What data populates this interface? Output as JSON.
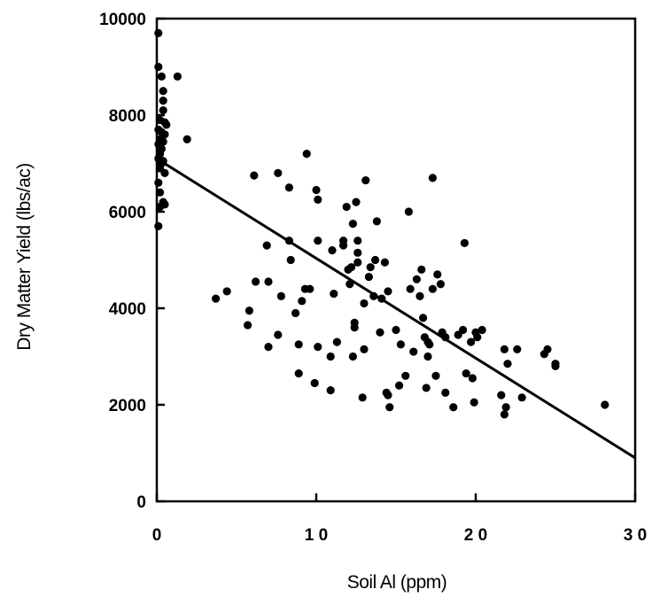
{
  "chart_data": {
    "type": "scatter",
    "title": "",
    "xlabel": "Soil Al (ppm)",
    "ylabel": "Dry Matter Yield (lbs/ac)",
    "xlim": [
      0,
      30
    ],
    "ylim": [
      0,
      10000
    ],
    "xticks": [
      0,
      10,
      20,
      30
    ],
    "xtick_labels": [
      "0",
      "1 0",
      "2 0",
      "3 0"
    ],
    "yticks": [
      0,
      2000,
      4000,
      6000,
      8000,
      10000
    ],
    "ytick_labels": [
      "0",
      "2000",
      "4000",
      "6000",
      "8000",
      "10000"
    ],
    "grid": false,
    "legend": "none",
    "colors": {
      "points": "#000000",
      "line": "#000000",
      "axes": "#000000"
    },
    "trendline": {
      "x": [
        0,
        30
      ],
      "y": [
        7100,
        900
      ]
    },
    "series": [
      {
        "points": [
          [
            0.1,
            9700
          ],
          [
            0.1,
            9000
          ],
          [
            0.3,
            8800
          ],
          [
            0.4,
            8500
          ],
          [
            0.4,
            8300
          ],
          [
            0.4,
            8100
          ],
          [
            0.2,
            7900
          ],
          [
            0.5,
            7850
          ],
          [
            0.6,
            7800
          ],
          [
            0.1,
            7700
          ],
          [
            0.3,
            7650
          ],
          [
            0.5,
            7600
          ],
          [
            0.2,
            7500
          ],
          [
            0.4,
            7450
          ],
          [
            0.1,
            7400
          ],
          [
            0.3,
            7300
          ],
          [
            0.2,
            7200
          ],
          [
            0.1,
            7100
          ],
          [
            0.4,
            7050
          ],
          [
            0.3,
            7000
          ],
          [
            0.2,
            6900
          ],
          [
            0.5,
            6800
          ],
          [
            0.1,
            6600
          ],
          [
            0.2,
            6400
          ],
          [
            0.4,
            6200
          ],
          [
            0.5,
            6150
          ],
          [
            0.2,
            6100
          ],
          [
            0.1,
            5700
          ],
          [
            1.3,
            8800
          ],
          [
            1.9,
            7500
          ],
          [
            3.7,
            4200
          ],
          [
            4.4,
            4350
          ],
          [
            5.7,
            3650
          ],
          [
            5.8,
            3950
          ],
          [
            6.1,
            6750
          ],
          [
            6.2,
            4550
          ],
          [
            6.9,
            5300
          ],
          [
            7.0,
            3200
          ],
          [
            7.0,
            4550
          ],
          [
            7.6,
            3450
          ],
          [
            7.6,
            6800
          ],
          [
            7.8,
            4250
          ],
          [
            8.3,
            6500
          ],
          [
            8.3,
            5400
          ],
          [
            8.4,
            5000
          ],
          [
            8.7,
            3900
          ],
          [
            8.9,
            2650
          ],
          [
            8.9,
            3250
          ],
          [
            9.1,
            4150
          ],
          [
            9.3,
            4400
          ],
          [
            9.4,
            7200
          ],
          [
            9.6,
            4400
          ],
          [
            9.9,
            2450
          ],
          [
            10.0,
            6450
          ],
          [
            10.1,
            6250
          ],
          [
            10.1,
            5400
          ],
          [
            10.1,
            3200
          ],
          [
            10.9,
            3000
          ],
          [
            10.9,
            2300
          ],
          [
            11.0,
            5200
          ],
          [
            11.1,
            4300
          ],
          [
            11.3,
            3300
          ],
          [
            11.7,
            5400
          ],
          [
            11.7,
            5300
          ],
          [
            11.9,
            6100
          ],
          [
            12.0,
            4800
          ],
          [
            12.1,
            4500
          ],
          [
            12.2,
            4850
          ],
          [
            12.3,
            5750
          ],
          [
            12.3,
            3000
          ],
          [
            12.4,
            3700
          ],
          [
            12.4,
            3600
          ],
          [
            12.5,
            6200
          ],
          [
            12.6,
            5400
          ],
          [
            12.6,
            5150
          ],
          [
            12.6,
            4950
          ],
          [
            12.9,
            2150
          ],
          [
            13.0,
            4100
          ],
          [
            13.0,
            3150
          ],
          [
            13.1,
            6650
          ],
          [
            13.3,
            4650
          ],
          [
            13.4,
            4850
          ],
          [
            13.6,
            4250
          ],
          [
            13.7,
            5000
          ],
          [
            13.8,
            5800
          ],
          [
            14.0,
            3500
          ],
          [
            14.1,
            4200
          ],
          [
            14.3,
            4950
          ],
          [
            14.4,
            2250
          ],
          [
            14.5,
            2200
          ],
          [
            14.5,
            4350
          ],
          [
            14.6,
            1950
          ],
          [
            15.0,
            3550
          ],
          [
            15.2,
            2400
          ],
          [
            15.3,
            3250
          ],
          [
            15.6,
            2600
          ],
          [
            15.8,
            6000
          ],
          [
            15.9,
            4400
          ],
          [
            16.1,
            3100
          ],
          [
            16.3,
            4600
          ],
          [
            16.5,
            4250
          ],
          [
            16.6,
            4800
          ],
          [
            16.7,
            3800
          ],
          [
            16.8,
            3400
          ],
          [
            16.9,
            2350
          ],
          [
            17.0,
            3000
          ],
          [
            17.0,
            3300
          ],
          [
            17.1,
            3250
          ],
          [
            17.3,
            6700
          ],
          [
            17.3,
            4400
          ],
          [
            17.5,
            2600
          ],
          [
            17.6,
            4700
          ],
          [
            17.8,
            4500
          ],
          [
            17.9,
            3500
          ],
          [
            18.1,
            2250
          ],
          [
            18.1,
            3400
          ],
          [
            18.6,
            1950
          ],
          [
            18.9,
            3450
          ],
          [
            19.2,
            3550
          ],
          [
            19.3,
            5350
          ],
          [
            19.4,
            2650
          ],
          [
            19.7,
            3300
          ],
          [
            19.8,
            2550
          ],
          [
            19.9,
            2050
          ],
          [
            20.0,
            3500
          ],
          [
            20.1,
            3400
          ],
          [
            20.4,
            3550
          ],
          [
            21.6,
            2200
          ],
          [
            21.8,
            3150
          ],
          [
            21.8,
            1800
          ],
          [
            21.9,
            1950
          ],
          [
            22.0,
            2850
          ],
          [
            22.6,
            3150
          ],
          [
            22.9,
            2150
          ],
          [
            24.3,
            3050
          ],
          [
            24.5,
            3150
          ],
          [
            25.0,
            2850
          ],
          [
            25.0,
            2800
          ],
          [
            28.1,
            2000
          ]
        ]
      }
    ]
  }
}
